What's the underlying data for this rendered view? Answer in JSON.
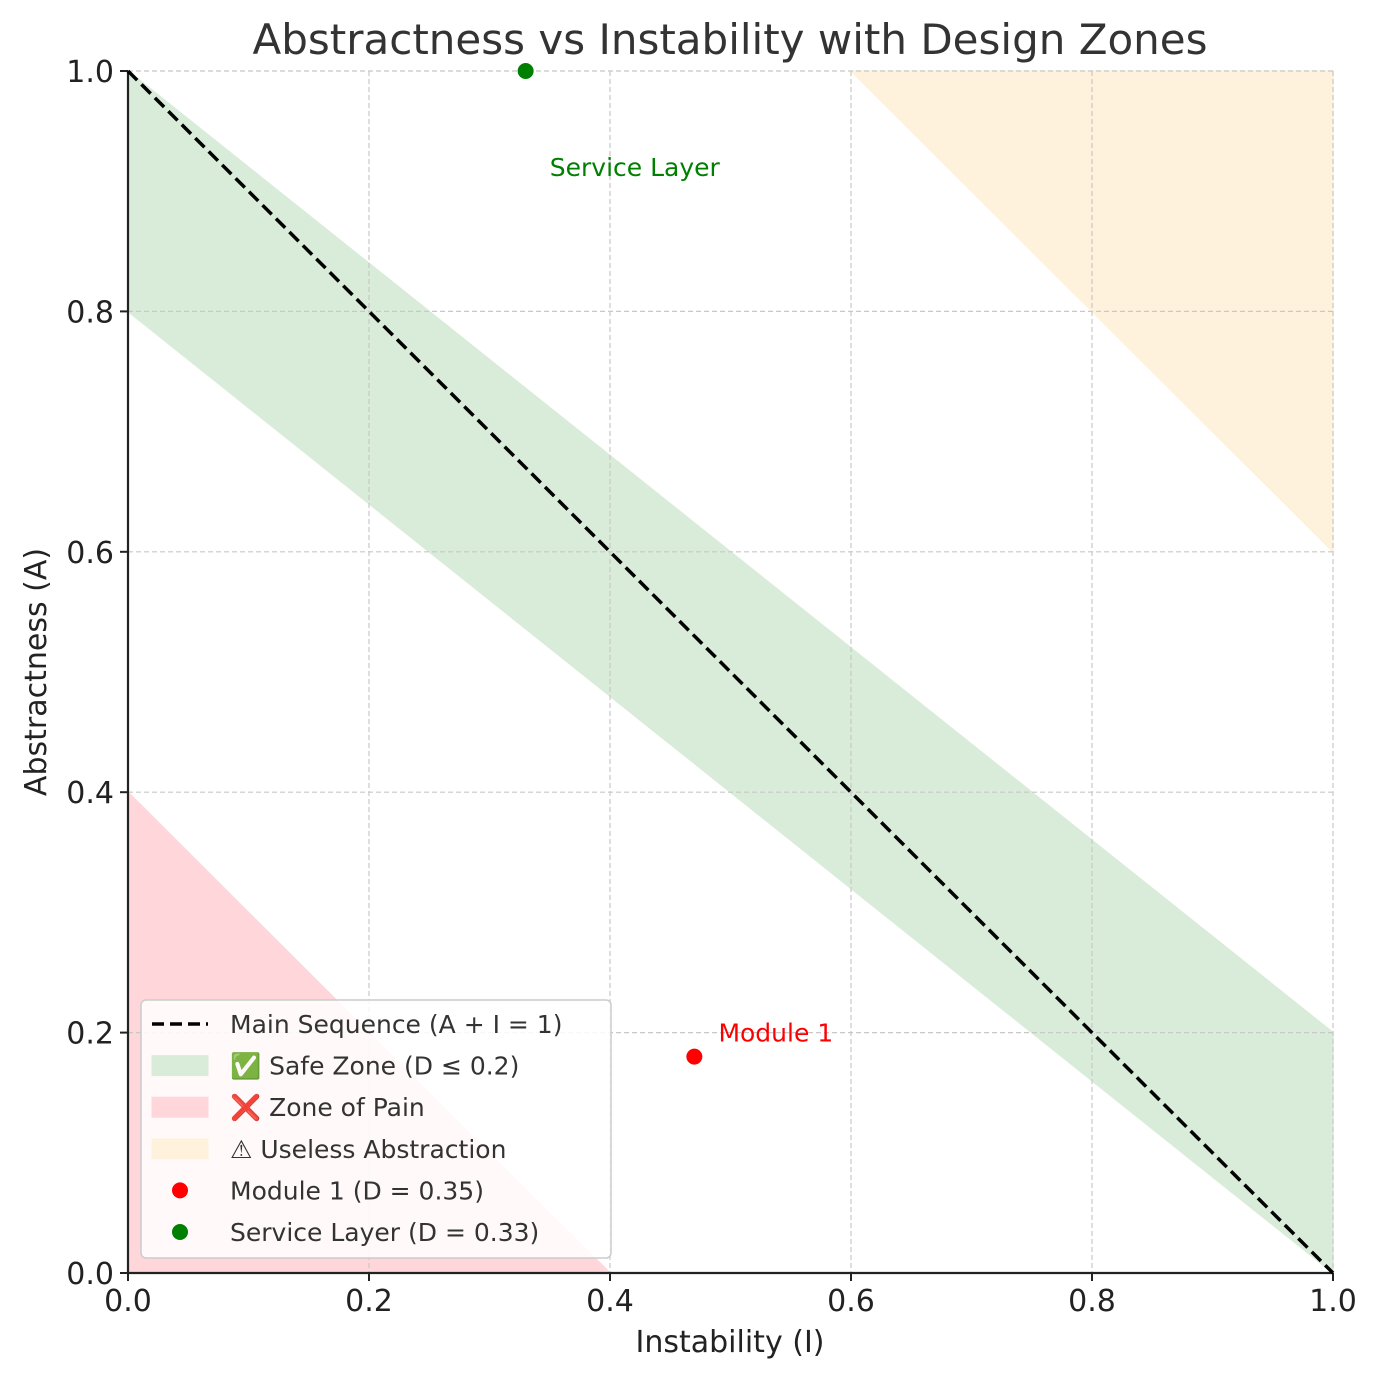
{
  "chart_data": {
    "type": "scatter",
    "title": "Abstractness vs Instability with Design Zones",
    "xlabel": "Instability (I)",
    "ylabel": "Abstractness (A)",
    "xlim": [
      0,
      1
    ],
    "ylim": [
      0,
      1
    ],
    "grid": true,
    "x_ticks": [
      "0.0",
      "0.2",
      "0.4",
      "0.6",
      "0.8",
      "1.0"
    ],
    "y_ticks": [
      "0.0",
      "0.2",
      "0.4",
      "0.6",
      "0.8",
      "1.0"
    ],
    "main_sequence": {
      "label": "Main Sequence (A + I = 1)",
      "points": [
        [
          0,
          1
        ],
        [
          1,
          0
        ]
      ],
      "color": "#000000"
    },
    "zones": [
      {
        "name": "safe",
        "label": "✅ Safe Zone (D ≤ 0.2)",
        "color": "#d9ecd9",
        "points": [
          [
            0,
            1
          ],
          [
            1,
            0.2
          ],
          [
            1,
            0
          ],
          [
            0,
            0.8
          ]
        ]
      },
      {
        "name": "pain",
        "label": "❌ Zone of Pain",
        "color": "#ffd6d9",
        "points": [
          [
            0,
            0
          ],
          [
            0.4,
            0
          ],
          [
            0,
            0.4
          ]
        ]
      },
      {
        "name": "useless",
        "label": "⚠ Useless Abstraction",
        "color": "#fff2dc",
        "points": [
          [
            0.6,
            1
          ],
          [
            1,
            1
          ],
          [
            1,
            0.6
          ]
        ]
      }
    ],
    "points": [
      {
        "name": "Module 1",
        "legend": "Module 1 (D = 0.35)",
        "x": 0.47,
        "y": 0.18,
        "color": "#ff0000"
      },
      {
        "name": "Service Layer",
        "legend": "Service Layer (D = 0.33)",
        "x": 0.33,
        "y": 1.0,
        "color": "#008000"
      }
    ],
    "annotations": [
      {
        "text": "Module 1",
        "x": 0.49,
        "y": 0.2,
        "color": "#ff0000"
      },
      {
        "text": "Service Layer",
        "x": 0.35,
        "y": 0.92,
        "color": "#008000"
      }
    ],
    "legend": {
      "placement": "lower-left",
      "entries": [
        "Main Sequence (A + I = 1)",
        "✅ Safe Zone (D ≤ 0.2)",
        "❌ Zone of Pain",
        "⚠ Useless Abstraction",
        "Module 1 (D = 0.35)",
        "Service Layer (D = 0.33)"
      ]
    }
  }
}
